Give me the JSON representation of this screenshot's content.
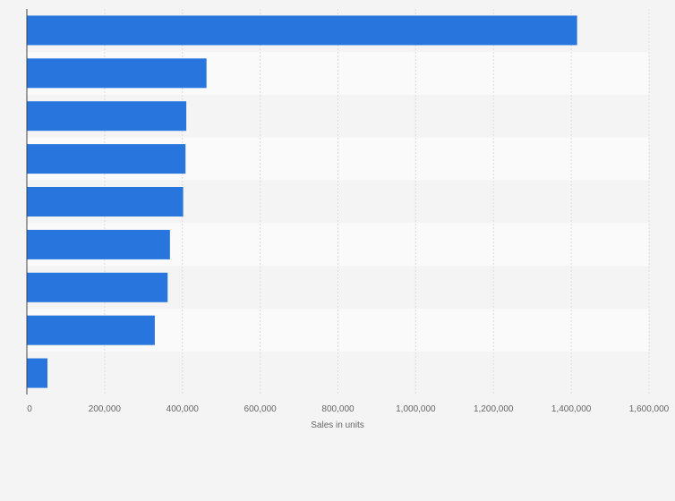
{
  "chart_data": {
    "type": "bar",
    "orientation": "horizontal",
    "title": "",
    "xlabel": "Sales in units",
    "ylabel": "",
    "categories": [
      "",
      "",
      "",
      "",
      "",
      "",
      "",
      "",
      ""
    ],
    "values": [
      1415000,
      462000,
      410000,
      408000,
      402000,
      368000,
      362000,
      329000,
      53000
    ],
    "xlim": [
      0,
      1600000
    ],
    "xticks": [
      0,
      200000,
      400000,
      600000,
      800000,
      1000000,
      1200000,
      1400000,
      1600000
    ],
    "xtick_labels": [
      "0",
      "200,000",
      "400,000",
      "600,000",
      "800,000",
      "1,000,000",
      "1,200,000",
      "1,400,000",
      "1,600,000"
    ],
    "grid": true,
    "legend": "none",
    "colors": {
      "bar": "#2876dd",
      "band_even": "#f4f4f4",
      "band_odd": "#fafafa",
      "grid": "#dcdcdc",
      "axis": "#444444"
    }
  }
}
